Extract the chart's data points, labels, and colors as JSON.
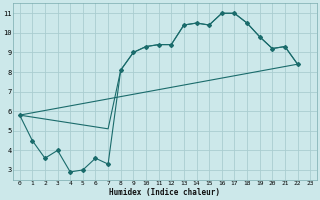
{
  "xlabel": "Humidex (Indice chaleur)",
  "bg_color": "#cce8ea",
  "grid_color": "#aacdd0",
  "line_color": "#1a6b6b",
  "xlim": [
    -0.5,
    23.5
  ],
  "ylim": [
    2.5,
    11.5
  ],
  "line1_x": [
    0,
    1,
    2,
    3,
    4,
    5,
    6,
    7,
    8,
    9,
    10,
    11,
    12,
    13,
    14,
    15,
    16,
    17,
    18,
    19,
    20,
    21,
    22
  ],
  "line1_y": [
    5.8,
    4.5,
    3.6,
    4.0,
    2.9,
    3.0,
    3.6,
    3.3,
    8.1,
    9.0,
    9.3,
    9.4,
    9.4,
    10.4,
    10.5,
    10.4,
    11.0,
    11.0,
    10.5,
    9.8,
    9.2,
    9.3,
    8.4
  ],
  "line2_x": [
    0,
    7,
    8,
    9,
    10,
    11,
    12,
    13,
    14,
    15,
    16,
    17,
    18,
    19,
    20,
    21,
    22
  ],
  "line2_y": [
    5.8,
    5.1,
    8.1,
    9.0,
    9.3,
    9.4,
    9.4,
    10.4,
    10.5,
    10.4,
    11.0,
    11.0,
    10.5,
    9.8,
    9.2,
    9.3,
    8.4
  ],
  "line3_x": [
    0,
    22
  ],
  "line3_y": [
    5.8,
    8.4
  ],
  "line4_x": [
    0,
    22
  ],
  "line4_y": [
    5.8,
    8.4
  ],
  "xticks": [
    0,
    1,
    2,
    3,
    4,
    5,
    6,
    7,
    8,
    9,
    10,
    11,
    12,
    13,
    14,
    15,
    16,
    17,
    18,
    19,
    20,
    21,
    22,
    23
  ],
  "yticks": [
    3,
    4,
    5,
    6,
    7,
    8,
    9,
    10,
    11
  ]
}
